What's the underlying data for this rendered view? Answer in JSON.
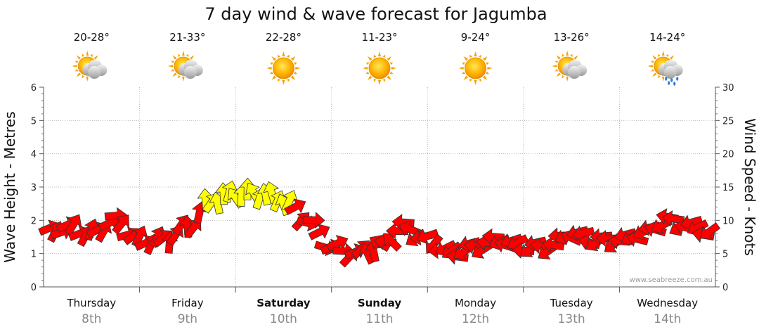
{
  "chart_data": {
    "type": "line",
    "title": "7 day wind & wave forecast for Jagumba",
    "ylabel_left": "Wave Height - Metres",
    "ylabel_right": "Wind Speed - Knots",
    "ylim_left": [
      0,
      6
    ],
    "ylim_right": [
      0,
      30
    ],
    "yticks_left": [
      "0",
      "1",
      "2",
      "3",
      "4",
      "5",
      "6"
    ],
    "yticks_right": [
      "0",
      "5",
      "10",
      "15",
      "20",
      "25",
      "30"
    ],
    "grid": true,
    "credit": "www.seabreeze.com.au",
    "days": [
      {
        "name": "Thursday",
        "date": "8th",
        "temp": "20-28°",
        "weather": "partly-cloudy",
        "bold": false
      },
      {
        "name": "Friday",
        "date": "9th",
        "temp": "21-33°",
        "weather": "partly-cloudy",
        "bold": false
      },
      {
        "name": "Saturday",
        "date": "10th",
        "temp": "22-28°",
        "weather": "sunny",
        "bold": true
      },
      {
        "name": "Sunday",
        "date": "11th",
        "temp": "11-23°",
        "weather": "sunny",
        "bold": true
      },
      {
        "name": "Monday",
        "date": "12th",
        "temp": "9-24°",
        "weather": "sunny",
        "bold": false
      },
      {
        "name": "Tuesday",
        "date": "13th",
        "temp": "13-26°",
        "weather": "partly-cloudy",
        "bold": false
      },
      {
        "name": "Wednesday",
        "date": "14th",
        "temp": "14-24°",
        "weather": "showers",
        "bold": false
      }
    ],
    "series": [
      {
        "name": "Wind",
        "unit": "knots",
        "x": [
          0,
          0.25,
          0.5,
          0.75,
          1,
          1.25,
          1.5,
          1.75,
          2,
          2.25,
          2.5,
          2.75,
          3,
          3.25,
          3.5,
          3.75,
          4,
          4.25,
          4.5,
          4.75,
          5,
          5.25,
          5.5,
          5.75,
          6,
          6.25,
          6.5,
          6.75,
          7
        ],
        "values": [
          8,
          9,
          8,
          10,
          7,
          7,
          9,
          13,
          14,
          14,
          13,
          10,
          6,
          5,
          6,
          9,
          7,
          5,
          6,
          7,
          6,
          6,
          8,
          7,
          7,
          8,
          10,
          9,
          8
        ],
        "direction_deg": [
          45,
          60,
          30,
          70,
          45,
          30,
          20,
          10,
          350,
          355,
          0,
          90,
          80,
          60,
          300,
          280,
          240,
          250,
          260,
          270,
          250,
          260,
          270,
          260,
          255,
          260,
          270,
          260,
          250
        ],
        "colors": {
          "normal": "#ff0000",
          "strong": "#ffff00"
        },
        "strong_threshold_knots": 12
      }
    ]
  }
}
